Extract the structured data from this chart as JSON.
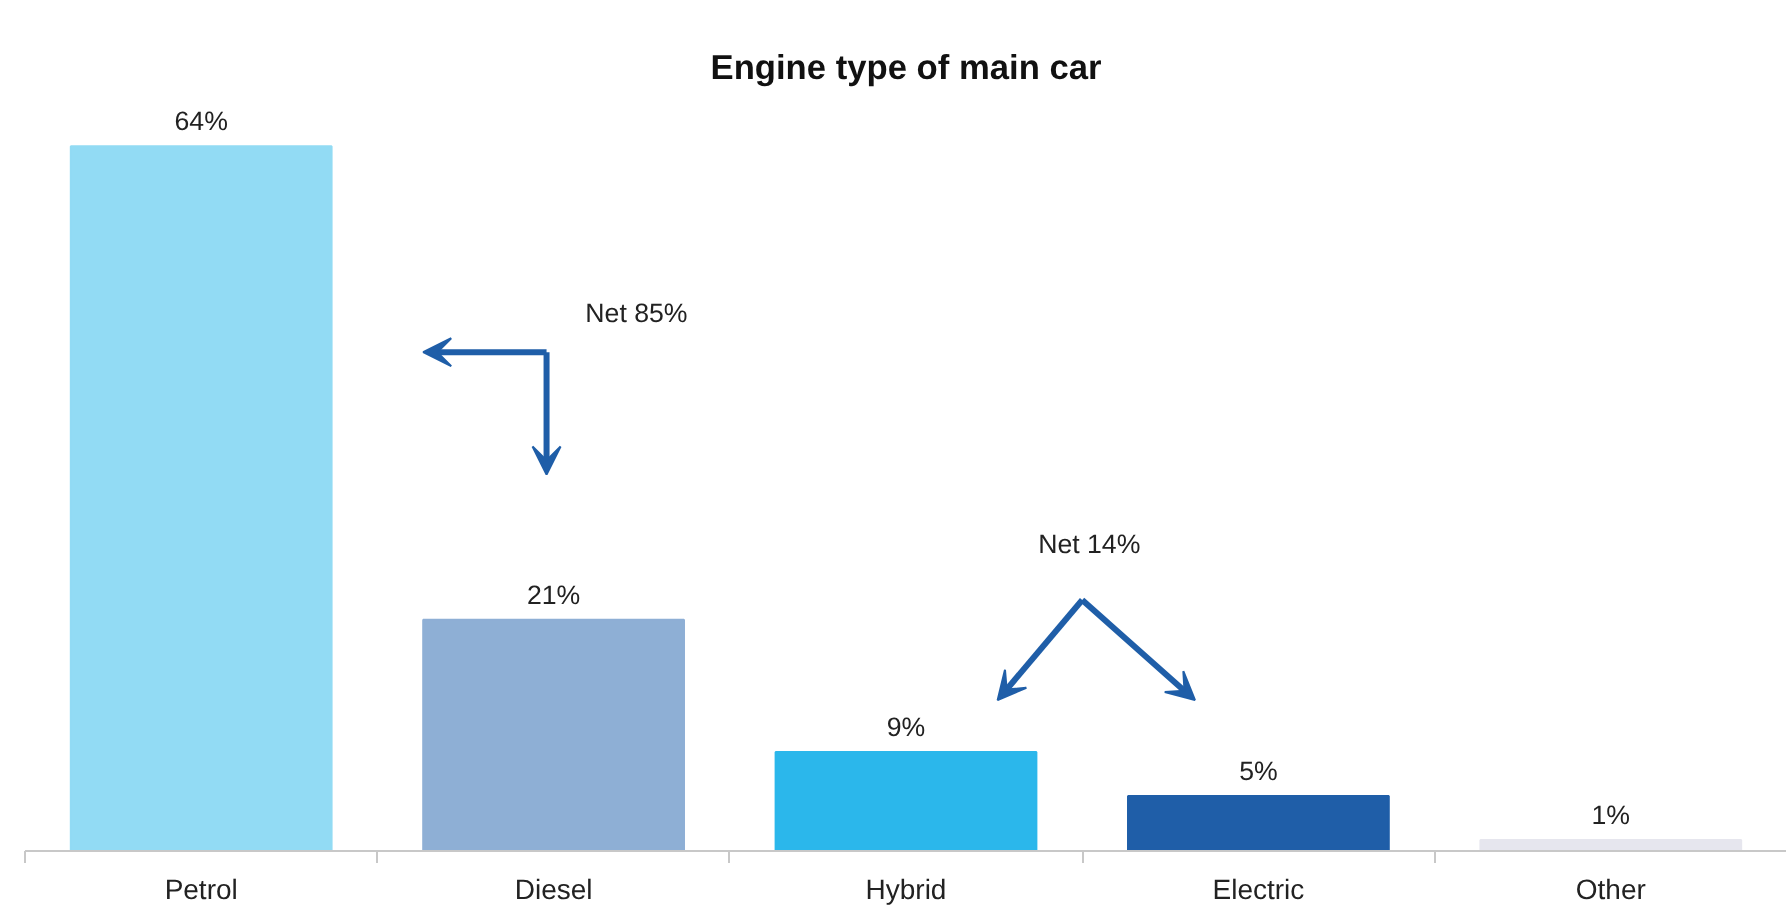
{
  "chart_data": {
    "type": "bar",
    "title": "Engine type of main car",
    "categories": [
      "Petrol",
      "Diesel",
      "Hybrid",
      "Electric",
      "Other"
    ],
    "values": [
      64,
      21,
      9,
      5,
      1
    ],
    "value_labels": [
      "64%",
      "21%",
      "9%",
      "5%",
      "1%"
    ],
    "colors": [
      "#92dbf4",
      "#8eafd5",
      "#2bb7eb",
      "#1f5ea8",
      "#e6e6ee"
    ],
    "annotations": [
      "Net 85%",
      "Net 14%"
    ],
    "grid": false
  }
}
